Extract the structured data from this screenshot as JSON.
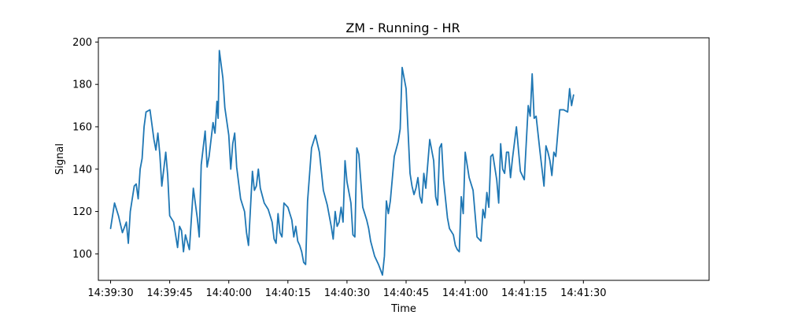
{
  "chart_data": {
    "type": "line",
    "title": "ZM - Running - HR",
    "xlabel": "Time",
    "ylabel": "Signal",
    "xlim_seconds": [
      -3.1,
      151.9
    ],
    "ylim": [
      87.5,
      202
    ],
    "x_ticks": [
      {
        "t": 0,
        "label": "14:39:30"
      },
      {
        "t": 15,
        "label": "14:39:45"
      },
      {
        "t": 30,
        "label": "14:40:00"
      },
      {
        "t": 45,
        "label": "14:40:15"
      },
      {
        "t": 60,
        "label": "14:40:30"
      },
      {
        "t": 75,
        "label": "14:40:45"
      },
      {
        "t": 90,
        "label": "14:41:00"
      },
      {
        "t": 105,
        "label": "14:41:15"
      },
      {
        "t": 120,
        "label": "14:41:30"
      }
    ],
    "y_ticks": [
      100,
      120,
      140,
      160,
      180,
      200
    ],
    "grid": false,
    "color": "#1f77b4",
    "series": [
      {
        "x": [
          "14:39:29",
          "14:39:30",
          "14:39:31",
          "14:39:32",
          "14:39:33",
          "14:39:34",
          "14:39:34",
          "14:39:35",
          "14:39:36",
          "14:39:36",
          "14:39:37",
          "14:39:37",
          "14:39:38",
          "14:39:38",
          "14:39:39",
          "14:39:40",
          "14:39:41",
          "14:39:41",
          "14:39:42",
          "14:39:42",
          "14:39:43",
          "14:39:43",
          "14:39:44",
          "14:39:44",
          "14:39:45",
          "14:39:46",
          "14:39:47",
          "14:39:48",
          "14:39:48",
          "14:39:49",
          "14:39:50",
          "14:39:51",
          "14:39:51",
          "14:39:52",
          "14:39:52",
          "14:39:53",
          "14:39:54",
          "14:39:54",
          "14:39:55",
          "14:39:56",
          "14:39:57",
          "14:39:57",
          "14:39:57",
          "14:39:58",
          "14:39:59",
          "14:40:00",
          "14:40:01",
          "14:40:01",
          "14:40:02",
          "14:40:03",
          "14:40:03",
          "14:40:04",
          "14:40:05",
          "14:40:05",
          "14:40:06",
          "14:40:07",
          "14:40:08",
          "14:40:09",
          "14:40:09",
          "14:40:10",
          "14:40:11",
          "14:40:12",
          "14:40:12",
          "14:40:13",
          "14:40:13",
          "14:40:14",
          "14:40:15",
          "14:40:16",
          "14:40:17",
          "14:40:18",
          "14:40:19",
          "14:40:20",
          "14:40:21",
          "14:40:21",
          "14:40:22",
          "14:40:22",
          "14:40:23",
          "14:40:23",
          "14:40:24",
          "14:40:25",
          "14:40:25",
          "14:40:26",
          "14:40:27",
          "14:40:28",
          "14:40:29",
          "14:40:30",
          "14:40:30",
          "14:40:31",
          "14:40:31",
          "14:40:32",
          "14:40:32",
          "14:40:33",
          "14:40:34",
          "14:40:34",
          "14:40:35",
          "14:40:36",
          "14:40:37",
          "14:40:37",
          "14:40:38",
          "14:40:38",
          "14:40:39",
          "14:40:39",
          "14:40:40",
          "14:40:41",
          "14:40:42",
          "14:40:43",
          "14:40:44",
          "14:40:45",
          "14:40:46",
          "14:40:47",
          "14:40:47",
          "14:40:48",
          "14:40:48",
          "14:40:49",
          "14:40:50",
          "14:40:51",
          "14:40:52",
          "14:40:52",
          "14:40:53",
          "14:40:53",
          "14:40:54",
          "14:40:55",
          "14:40:55",
          "14:40:56",
          "14:40:56",
          "14:40:57",
          "14:40:58",
          "14:40:58",
          "14:40:59",
          "14:41:00",
          "14:41:00",
          "14:41:01",
          "14:41:01",
          "14:41:02",
          "14:41:02",
          "14:41:03",
          "14:41:04",
          "14:41:04",
          "14:41:05",
          "14:41:05",
          "14:41:06",
          "14:41:06",
          "14:41:07",
          "14:41:07",
          "14:41:08",
          "14:41:09",
          "14:41:10",
          "14:41:11",
          "14:41:11",
          "14:41:12",
          "14:41:12",
          "14:41:13",
          "14:41:14",
          "14:41:15",
          "14:41:16",
          "14:41:16",
          "14:41:17",
          "14:41:18",
          "14:41:19",
          "14:41:20",
          "14:41:21",
          "14:41:22",
          "14:41:22",
          "14:41:23",
          "14:41:24",
          "14:41:24",
          "14:41:25",
          "14:41:26",
          "14:41:27",
          "14:41:27",
          "14:41:28",
          "14:41:29",
          "14:41:29",
          "14:41:30",
          "14:41:31",
          "14:41:31",
          "14:41:32",
          "14:41:33",
          "14:41:34",
          "14:41:35",
          "14:41:35",
          "14:41:36"
        ],
        "y": [
          112,
          124,
          118,
          110,
          115,
          105,
          120,
          132,
          133,
          126,
          140,
          145,
          160,
          167,
          168,
          154,
          149,
          157,
          147,
          132,
          140,
          148,
          137,
          118,
          115,
          103,
          113,
          111,
          101,
          109,
          102,
          131,
          124,
          117,
          108,
          142,
          158,
          141,
          146,
          162,
          157,
          172,
          164,
          196,
          183,
          169,
          156,
          140,
          152,
          157,
          141,
          126,
          120,
          110,
          104,
          139,
          130,
          132,
          140,
          131,
          124,
          121,
          115,
          107,
          105,
          119,
          110,
          108,
          124,
          122,
          116,
          108,
          113,
          106,
          104,
          101,
          96,
          95,
          125,
          150,
          156,
          148,
          130,
          123,
          113,
          107,
          120,
          113,
          115,
          122,
          115,
          144,
          134,
          124,
          109,
          108,
          150,
          147,
          122,
          116,
          112,
          106,
          99,
          95,
          90,
          99,
          125,
          119,
          125,
          146,
          153,
          159,
          188,
          178,
          138,
          132,
          128,
          131,
          136,
          127,
          124,
          138,
          131,
          154,
          144,
          127,
          123,
          150,
          152,
          135,
          126,
          117,
          112,
          109,
          104,
          102,
          101,
          127,
          119,
          148,
          136,
          130,
          119,
          108,
          106,
          121,
          117,
          129,
          122,
          146,
          147,
          135,
          124,
          152,
          140,
          138,
          148,
          148,
          136,
          145,
          160,
          139,
          135,
          170,
          165,
          185,
          164,
          165,
          148,
          132,
          151,
          148,
          144,
          137,
          148,
          146,
          168,
          168,
          167,
          178,
          170,
          175
        ],
        "points": [
          [
            0,
            112
          ],
          [
            1,
            124
          ],
          [
            2,
            118
          ],
          [
            3,
            110
          ],
          [
            4,
            115
          ],
          [
            4.5,
            105
          ],
          [
            5,
            120
          ],
          [
            6,
            132
          ],
          [
            6.5,
            133
          ],
          [
            7,
            126
          ],
          [
            7.5,
            140
          ],
          [
            8,
            145
          ],
          [
            8.5,
            160
          ],
          [
            9,
            167
          ],
          [
            10,
            168
          ],
          [
            11,
            154
          ],
          [
            11.5,
            149
          ],
          [
            12,
            157
          ],
          [
            12.5,
            147
          ],
          [
            13,
            132
          ],
          [
            13.5,
            140
          ],
          [
            14,
            148
          ],
          [
            14.5,
            137
          ],
          [
            15,
            118
          ],
          [
            16,
            115
          ],
          [
            17,
            103
          ],
          [
            17.5,
            113
          ],
          [
            18,
            111
          ],
          [
            18.5,
            101
          ],
          [
            19,
            109
          ],
          [
            20,
            102
          ],
          [
            21,
            131
          ],
          [
            21.5,
            124
          ],
          [
            22,
            117
          ],
          [
            22.5,
            108
          ],
          [
            23,
            142
          ],
          [
            24,
            158
          ],
          [
            24.5,
            141
          ],
          [
            25,
            146
          ],
          [
            26,
            162
          ],
          [
            26.5,
            157
          ],
          [
            27,
            172
          ],
          [
            27.3,
            164
          ],
          [
            27.6,
            196
          ],
          [
            28.5,
            183
          ],
          [
            29,
            169
          ],
          [
            30,
            156
          ],
          [
            30.5,
            140
          ],
          [
            31,
            152
          ],
          [
            31.5,
            157
          ],
          [
            32,
            141
          ],
          [
            33,
            126
          ],
          [
            34,
            120
          ],
          [
            34.5,
            110
          ],
          [
            35,
            104
          ],
          [
            36,
            139
          ],
          [
            36.5,
            130
          ],
          [
            37,
            132
          ],
          [
            37.5,
            140
          ],
          [
            38,
            131
          ],
          [
            39,
            124
          ],
          [
            40,
            121
          ],
          [
            41,
            115
          ],
          [
            41.5,
            107
          ],
          [
            42,
            105
          ],
          [
            42.5,
            119
          ],
          [
            43,
            110
          ],
          [
            43.5,
            108
          ],
          [
            44,
            124
          ],
          [
            45,
            122
          ],
          [
            46,
            116
          ],
          [
            46.5,
            108
          ],
          [
            47,
            113
          ],
          [
            47.5,
            106
          ],
          [
            48,
            104
          ],
          [
            48.5,
            101
          ],
          [
            49,
            96
          ],
          [
            49.5,
            95
          ],
          [
            50,
            125
          ],
          [
            51,
            150
          ],
          [
            52,
            156
          ],
          [
            53,
            148
          ],
          [
            54,
            130
          ],
          [
            55,
            123
          ],
          [
            56,
            113
          ],
          [
            56.5,
            107
          ],
          [
            57,
            120
          ],
          [
            57.5,
            113
          ],
          [
            58,
            115
          ],
          [
            58.5,
            122
          ],
          [
            59,
            115
          ],
          [
            59.5,
            144
          ],
          [
            60,
            134
          ],
          [
            61,
            124
          ],
          [
            61.5,
            109
          ],
          [
            62,
            108
          ],
          [
            62.5,
            150
          ],
          [
            63,
            147
          ],
          [
            64,
            122
          ],
          [
            65,
            116
          ],
          [
            65.5,
            112
          ],
          [
            66,
            106
          ],
          [
            67,
            99
          ],
          [
            68,
            95
          ],
          [
            69,
            90
          ],
          [
            69.5,
            99
          ],
          [
            70,
            125
          ],
          [
            70.5,
            119
          ],
          [
            71,
            125
          ],
          [
            72,
            146
          ],
          [
            73,
            153
          ],
          [
            73.5,
            159
          ],
          [
            74,
            188
          ],
          [
            75,
            178
          ],
          [
            76,
            138
          ],
          [
            76.5,
            132
          ],
          [
            77,
            128
          ],
          [
            77.5,
            131
          ],
          [
            78,
            136
          ],
          [
            78.5,
            127
          ],
          [
            79,
            124
          ],
          [
            79.5,
            138
          ],
          [
            80,
            131
          ],
          [
            81,
            154
          ],
          [
            82,
            144
          ],
          [
            82.5,
            127
          ],
          [
            83,
            123
          ],
          [
            83.5,
            150
          ],
          [
            84,
            152
          ],
          [
            84.5,
            135
          ],
          [
            85,
            126
          ],
          [
            85.5,
            117
          ],
          [
            86,
            112
          ],
          [
            87,
            109
          ],
          [
            87.5,
            104
          ],
          [
            88,
            102
          ],
          [
            88.5,
            101
          ],
          [
            89,
            127
          ],
          [
            89.5,
            119
          ],
          [
            90,
            148
          ],
          [
            91,
            136
          ],
          [
            92,
            130
          ],
          [
            92.5,
            119
          ],
          [
            93,
            108
          ],
          [
            94,
            106
          ],
          [
            94.5,
            121
          ],
          [
            95,
            117
          ],
          [
            95.5,
            129
          ],
          [
            96,
            122
          ],
          [
            96.5,
            146
          ],
          [
            97,
            147
          ],
          [
            98,
            135
          ],
          [
            98.5,
            124
          ],
          [
            99,
            152
          ],
          [
            99.5,
            140
          ],
          [
            100,
            138
          ],
          [
            100.5,
            148
          ],
          [
            101,
            148
          ],
          [
            101.5,
            136
          ],
          [
            102,
            145
          ],
          [
            103,
            160
          ],
          [
            104,
            139
          ],
          [
            105,
            135
          ],
          [
            106,
            170
          ],
          [
            106.5,
            165
          ],
          [
            107,
            185
          ],
          [
            107.5,
            164
          ],
          [
            108,
            165
          ],
          [
            109,
            148
          ],
          [
            110,
            132
          ],
          [
            110.5,
            151
          ],
          [
            111,
            148
          ],
          [
            111.5,
            144
          ],
          [
            112,
            137
          ],
          [
            112.5,
            148
          ],
          [
            113,
            146
          ],
          [
            114,
            168
          ],
          [
            115,
            168
          ],
          [
            116,
            167
          ],
          [
            116.5,
            178
          ],
          [
            117,
            170
          ],
          [
            117.5,
            175
          ]
        ]
      }
    ]
  }
}
